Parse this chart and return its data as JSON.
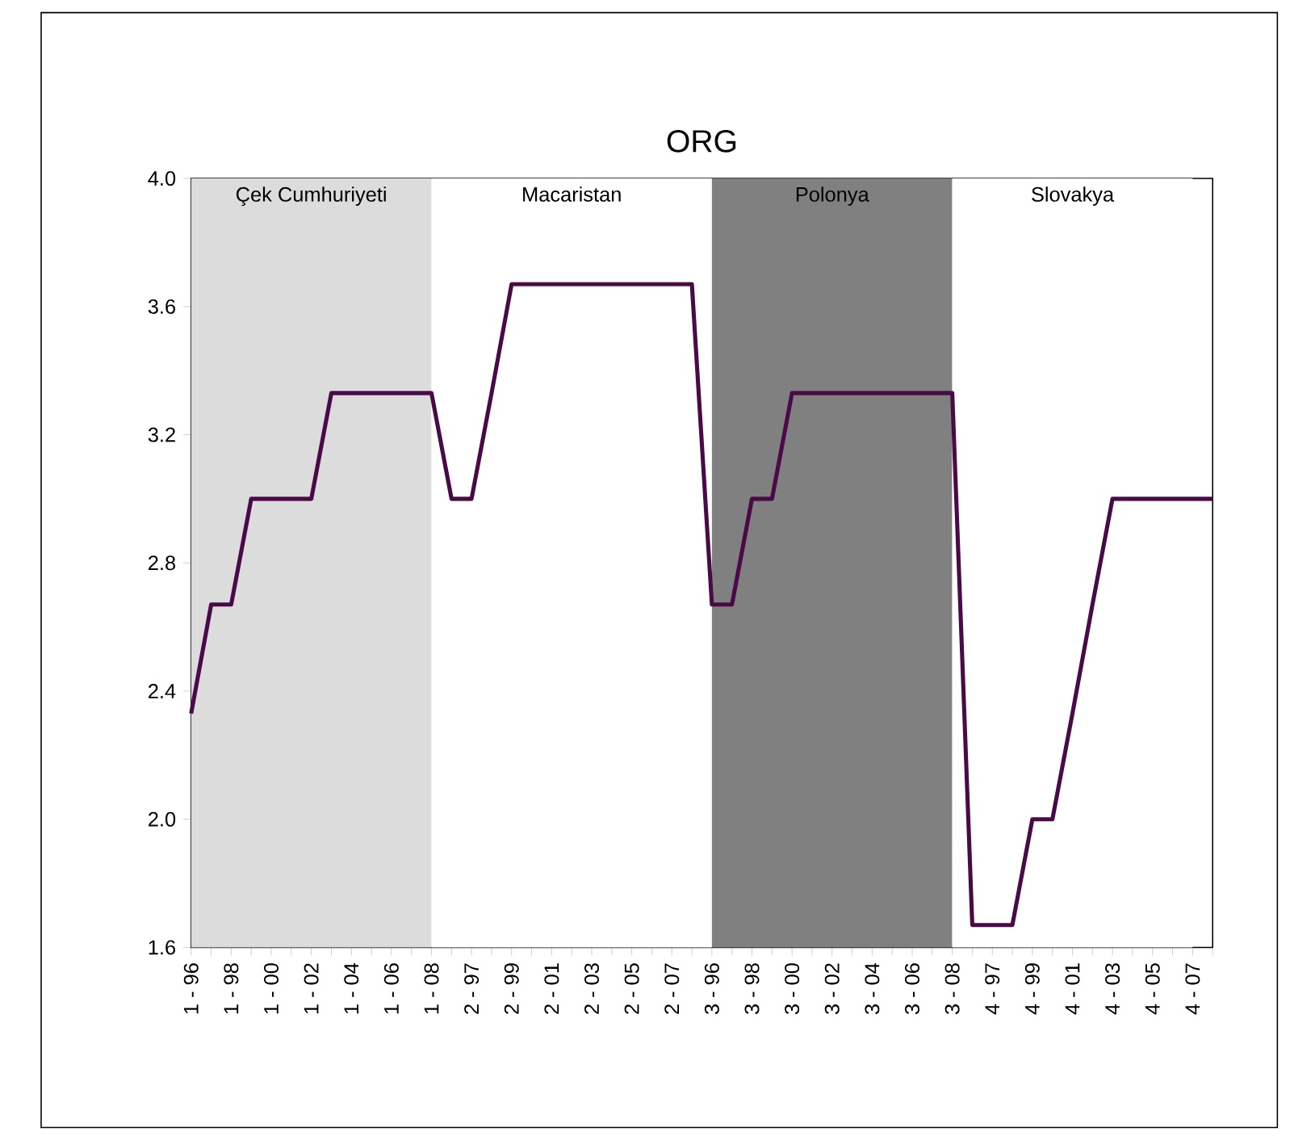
{
  "chart_data": {
    "type": "line",
    "title": "ORG",
    "categories": [
      "1 - 96",
      null,
      "1 - 98",
      null,
      "1 - 00",
      null,
      "1 - 02",
      null,
      "1 - 04",
      null,
      "1 - 06",
      null,
      "1 - 08",
      null,
      "2 - 97",
      null,
      "2 - 99",
      null,
      "2 - 01",
      null,
      "2 - 03",
      null,
      "2 - 05",
      null,
      "2 - 07",
      null,
      "3 - 96",
      null,
      "3 - 98",
      null,
      "3 - 00",
      null,
      "3 - 02",
      null,
      "3 - 04",
      null,
      "3 - 06",
      null,
      "3 - 08",
      null,
      "4 - 97",
      null,
      "4 - 99",
      null,
      "4 - 01",
      null,
      "4 - 03",
      null,
      "4 - 05",
      null,
      "4 - 07",
      null
    ],
    "values": [
      2.33,
      2.67,
      2.67,
      3.0,
      3.0,
      3.0,
      3.0,
      3.33,
      3.33,
      3.33,
      3.33,
      3.33,
      3.33,
      3.0,
      3.0,
      3.33,
      3.67,
      3.67,
      3.67,
      3.67,
      3.67,
      3.67,
      3.67,
      3.67,
      3.67,
      3.67,
      2.67,
      2.67,
      3.0,
      3.0,
      3.33,
      3.33,
      3.33,
      3.33,
      3.33,
      3.33,
      3.33,
      3.33,
      3.33,
      1.67,
      1.67,
      1.67,
      2.0,
      2.0,
      2.33,
      2.67,
      3.0,
      3.0,
      3.0,
      3.0,
      3.0,
      3.0
    ],
    "color": "#4a0a48",
    "line_style": "solid",
    "ylim": [
      1.6,
      4.0
    ],
    "yticks": [
      {
        "value": 1.6,
        "label": "1.6"
      },
      {
        "value": 2.0,
        "label": "2.0"
      },
      {
        "value": 2.4,
        "label": "2.4"
      },
      {
        "value": 2.8,
        "label": "2.8"
      },
      {
        "value": 3.2,
        "label": "3.2"
      },
      {
        "value": 3.6,
        "label": "3.6"
      },
      {
        "value": 4.0,
        "label": "4.0"
      }
    ],
    "bands": [
      {
        "axis": "x",
        "from": "1 - 96",
        "to": "1 - 08",
        "label": "Çek Cumhuriyeti",
        "color": "#dcdcdc"
      },
      {
        "axis": "x",
        "from": "1 - 08",
        "to": "3 - 96",
        "label": "Macaristan",
        "color": "#ffffff"
      },
      {
        "axis": "x",
        "from": "3 - 96",
        "to": "3 - 08",
        "label": "Polonya",
        "color": "#808080"
      },
      {
        "axis": "x",
        "from": "3 - 08",
        "to": "4 - 07",
        "label": "Slovakya",
        "color": "#ffffff"
      }
    ]
  }
}
